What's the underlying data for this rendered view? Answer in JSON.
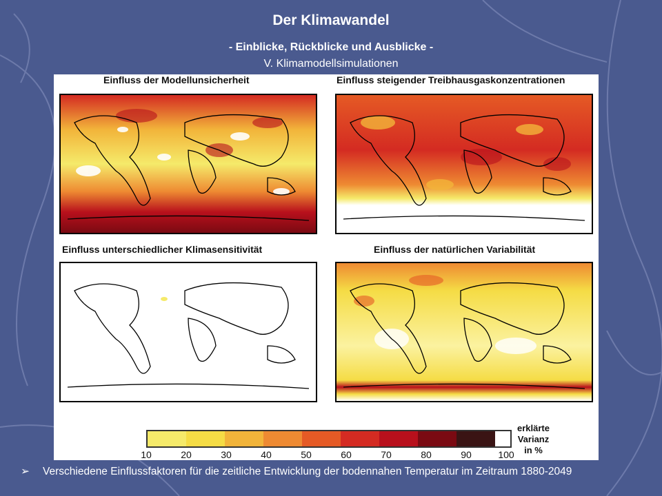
{
  "slide": {
    "title": "Der Klimawandel",
    "subtitle": "- Einblicke, Rückblicke und Ausblicke -",
    "section": "V. Klimamodellsimulationen"
  },
  "figure": {
    "panels": [
      {
        "title": "Einfluss der Modellunsicherheit"
      },
      {
        "title": "Einfluss steigender Treibhausgaskonzentrationen"
      },
      {
        "title": "Einfluss unterschiedlicher Klimasensitivität"
      },
      {
        "title": "Einfluss der natürlichen Variabilität"
      }
    ],
    "legend": {
      "ticks": [
        "10",
        "20",
        "30",
        "40",
        "50",
        "60",
        "70",
        "80",
        "90",
        "100"
      ],
      "note_line1": "erklärte",
      "note_line2": "Varianz",
      "note_line3": "in %",
      "colors": [
        "#f5ea6a",
        "#f5dc45",
        "#f2b43a",
        "#ee8a32",
        "#e55a25",
        "#d42b22",
        "#b8101c",
        "#7a0a12",
        "#3a1414"
      ]
    }
  },
  "bullet": {
    "text": "Verschiedene Einflussfaktoren für die zeitliche Entwicklung der bodennahen Temperatur im Zeitraum 1880-2049"
  }
}
